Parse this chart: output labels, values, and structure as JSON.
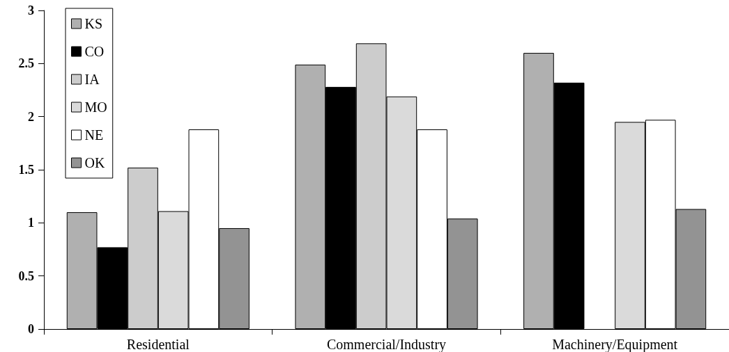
{
  "chart_data": {
    "type": "bar",
    "categories": [
      "Residential",
      "Commercial/Industry",
      "Machinery/Equipment"
    ],
    "series": [
      {
        "name": "KS",
        "color": "#b0b0b0",
        "values": [
          1.1,
          2.49,
          2.6
        ]
      },
      {
        "name": "CO",
        "color": "#000000",
        "values": [
          0.77,
          2.28,
          2.32
        ]
      },
      {
        "name": "IA",
        "color": "#cccccc",
        "values": [
          1.52,
          2.69,
          null
        ]
      },
      {
        "name": "MO",
        "color": "#dadada",
        "values": [
          1.11,
          2.19,
          1.95
        ]
      },
      {
        "name": "NE",
        "color": "#ffffff",
        "values": [
          1.88,
          1.88,
          1.97
        ]
      },
      {
        "name": "OK",
        "color": "#939393",
        "values": [
          0.95,
          1.04,
          1.13
        ]
      }
    ],
    "ylim": [
      0,
      3
    ],
    "yticks": [
      0,
      0.5,
      1,
      1.5,
      2,
      2.5,
      3
    ],
    "grid": false,
    "legend": "top left"
  }
}
